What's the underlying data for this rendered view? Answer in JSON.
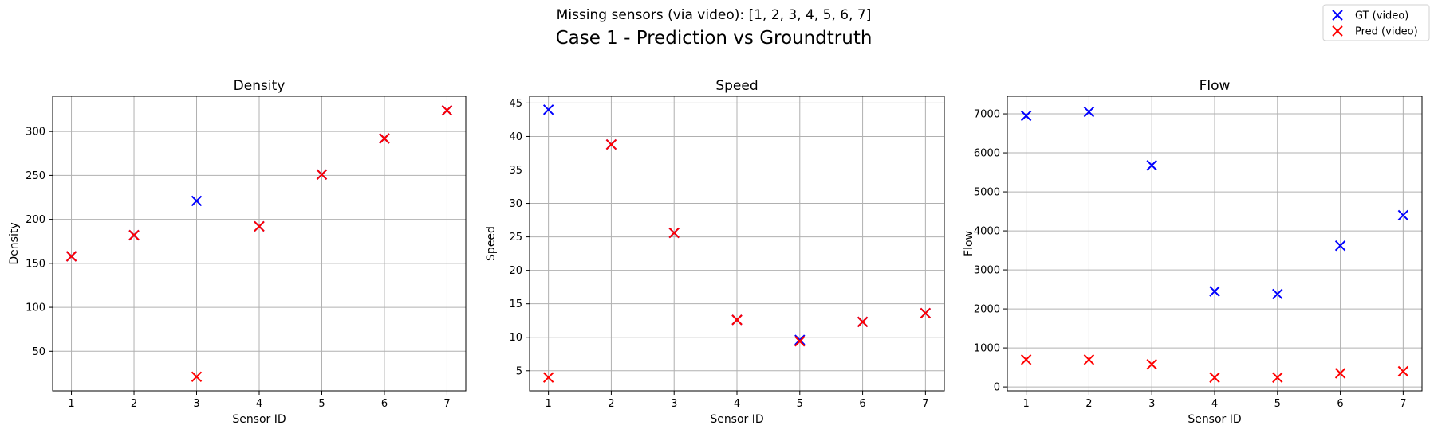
{
  "figure": {
    "subtitle": "Missing sensors (via video): [1, 2, 3, 4, 5, 6, 7]",
    "title": "Case 1 - Prediction vs Groundtruth"
  },
  "legend": {
    "placement": "top-right",
    "entries": [
      {
        "label": "GT (video)",
        "color": "#0000ff",
        "marker": "x"
      },
      {
        "label": "Pred (video)",
        "color": "#ff0000",
        "marker": "x"
      }
    ]
  },
  "chart_data": [
    {
      "type": "scatter",
      "title": "Density",
      "xlabel": "Sensor ID",
      "ylabel": "Density",
      "x": [
        1,
        2,
        3,
        4,
        5,
        6,
        7
      ],
      "xlim": [
        0.7,
        7.3
      ],
      "ylim": [
        5,
        340
      ],
      "xticks": [
        1,
        2,
        3,
        4,
        5,
        6,
        7
      ],
      "yticks": [
        50,
        100,
        150,
        200,
        250,
        300
      ],
      "grid": true,
      "series": [
        {
          "name": "GT (video)",
          "color": "#0000ff",
          "values": [
            158,
            182,
            221,
            192,
            251,
            292,
            324
          ]
        },
        {
          "name": "Pred (video)",
          "color": "#ff0000",
          "values": [
            158,
            182,
            21,
            192,
            251,
            292,
            324
          ]
        }
      ]
    },
    {
      "type": "scatter",
      "title": "Speed",
      "xlabel": "Sensor ID",
      "ylabel": "Speed",
      "x": [
        1,
        2,
        3,
        4,
        5,
        6,
        7
      ],
      "xlim": [
        0.7,
        7.3
      ],
      "ylim": [
        2,
        46
      ],
      "xticks": [
        1,
        2,
        3,
        4,
        5,
        6,
        7
      ],
      "yticks": [
        5,
        10,
        15,
        20,
        25,
        30,
        35,
        40,
        45
      ],
      "grid": true,
      "series": [
        {
          "name": "GT (video)",
          "color": "#0000ff",
          "values": [
            44,
            38.8,
            25.6,
            12.6,
            9.6,
            12.3,
            13.6
          ]
        },
        {
          "name": "Pred (video)",
          "color": "#ff0000",
          "values": [
            4,
            38.8,
            25.6,
            12.6,
            9.4,
            12.3,
            13.6
          ]
        }
      ]
    },
    {
      "type": "scatter",
      "title": "Flow",
      "xlabel": "Sensor ID",
      "ylabel": "Flow",
      "x": [
        1,
        2,
        3,
        4,
        5,
        6,
        7
      ],
      "xlim": [
        0.7,
        7.3
      ],
      "ylim": [
        -100,
        7450
      ],
      "xticks": [
        1,
        2,
        3,
        4,
        5,
        6,
        7
      ],
      "yticks": [
        0,
        1000,
        2000,
        3000,
        4000,
        5000,
        6000,
        7000
      ],
      "grid": true,
      "series": [
        {
          "name": "GT (video)",
          "color": "#0000ff",
          "values": [
            6950,
            7050,
            5680,
            2450,
            2380,
            3620,
            4400
          ]
        },
        {
          "name": "Pred (video)",
          "color": "#ff0000",
          "values": [
            700,
            700,
            580,
            240,
            240,
            350,
            400
          ]
        }
      ]
    }
  ]
}
